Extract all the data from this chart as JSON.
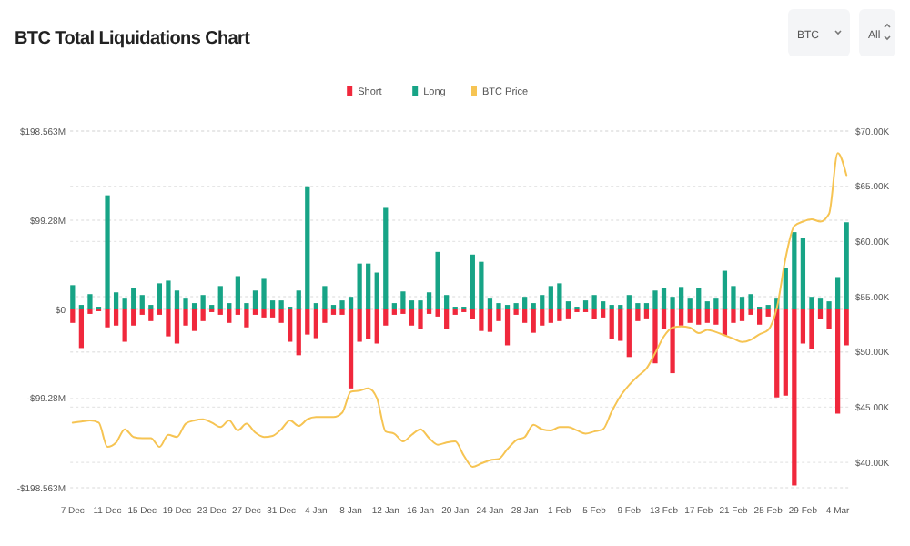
{
  "chart_data": {
    "type": "bar",
    "title": "BTC Total Liquidations Chart",
    "annotations": [
      "BTC",
      "All"
    ],
    "categories": [
      "7 Dec",
      null,
      null,
      null,
      "11 Dec",
      null,
      null,
      null,
      "15 Dec",
      null,
      null,
      null,
      "19 Dec",
      null,
      null,
      null,
      "23 Dec",
      null,
      null,
      null,
      "27 Dec",
      null,
      null,
      null,
      "31 Dec",
      null,
      null,
      null,
      "4 Jan",
      null,
      null,
      null,
      "8 Jan",
      null,
      null,
      null,
      "12 Jan",
      null,
      null,
      null,
      "16 Jan",
      null,
      null,
      null,
      "20 Jan",
      null,
      null,
      null,
      "24 Jan",
      null,
      null,
      null,
      "28 Jan",
      null,
      null,
      null,
      "1 Feb",
      null,
      null,
      null,
      "5 Feb",
      null,
      null,
      null,
      "9 Feb",
      null,
      null,
      null,
      "13 Feb",
      null,
      null,
      null,
      "17 Feb",
      null,
      null,
      null,
      "21 Feb",
      null,
      null,
      null,
      "25 Feb",
      null,
      null,
      null,
      "29 Feb",
      null,
      null,
      null,
      "4 Mar",
      null
    ],
    "series": [
      {
        "name": "Short",
        "color": "#f0283c",
        "values": [
          -15,
          -43,
          -5,
          -2,
          -20,
          -18,
          -36,
          -18,
          -6,
          -13,
          -6,
          -30,
          -38,
          -18,
          -24,
          -13,
          -3,
          -6,
          -15,
          -6,
          -20,
          -6,
          -9,
          -9,
          -15,
          -36,
          -51,
          -28,
          -32,
          -15,
          -6,
          -6,
          -88,
          -36,
          -33,
          -38,
          -18,
          -6,
          -5,
          -18,
          -22,
          -5,
          -8,
          -22,
          -6,
          -3,
          -11,
          -24,
          -25,
          -13,
          -40,
          -6,
          -15,
          -26,
          -18,
          -15,
          -13,
          -10,
          -3,
          -3,
          -11,
          -9,
          -33,
          -35,
          -53,
          -13,
          -10,
          -60,
          -22,
          -71,
          -18,
          -15,
          -17,
          -15,
          -17,
          -29,
          -15,
          -13,
          -6,
          -17,
          -8,
          -98,
          -96,
          -196,
          -38,
          -44,
          -11,
          -22,
          -116,
          -40
        ]
      },
      {
        "name": "Long",
        "color": "#17a486",
        "values": [
          27,
          5,
          17,
          3,
          127,
          19,
          12,
          24,
          16,
          5,
          29,
          32,
          21,
          12,
          7,
          16,
          5,
          26,
          7,
          37,
          7,
          21,
          34,
          10,
          10,
          3,
          21,
          137,
          7,
          26,
          5,
          10,
          14,
          51,
          51,
          41,
          113,
          7,
          20,
          10,
          10,
          19,
          64,
          16,
          3,
          3,
          61,
          53,
          12,
          7,
          5,
          7,
          14,
          7,
          16,
          26,
          29,
          9,
          3,
          10,
          16,
          9,
          5,
          5,
          16,
          7,
          7,
          21,
          24,
          14,
          25,
          12,
          24,
          9,
          12,
          43,
          26,
          14,
          17,
          3,
          5,
          12,
          46,
          86,
          80,
          14,
          12,
          9,
          36,
          97
        ]
      },
      {
        "name": "BTC Price",
        "type": "line",
        "axis": "y2",
        "color": "#f6c453",
        "values": [
          43.6,
          43.7,
          43.8,
          43.6,
          41.4,
          41.8,
          43.0,
          42.3,
          42.2,
          42.2,
          41.4,
          42.5,
          42.3,
          43.5,
          43.8,
          43.9,
          43.6,
          43.2,
          43.8,
          42.9,
          43.5,
          42.7,
          42.3,
          42.4,
          43.0,
          43.8,
          43.3,
          43.9,
          44.1,
          44.1,
          44.1,
          44.5,
          46.4,
          46.5,
          46.7,
          45.8,
          42.8,
          42.6,
          41.9,
          42.5,
          43.0,
          42.2,
          41.6,
          41.8,
          41.9,
          40.6,
          39.6,
          39.9,
          40.2,
          40.3,
          41.2,
          42.0,
          42.3,
          43.4,
          43.0,
          42.9,
          43.2,
          43.2,
          42.9,
          42.6,
          42.8,
          43.0,
          44.6,
          46.0,
          47.0,
          47.8,
          48.5,
          49.9,
          51.4,
          52.2,
          52.3,
          52.2,
          51.7,
          52.0,
          51.8,
          51.5,
          51.2,
          50.9,
          51.1,
          51.6,
          52.0,
          54.0,
          58.5,
          61.4,
          61.8,
          62.0,
          61.8,
          62.5,
          68.0,
          66.0
        ]
      }
    ],
    "ylim": [
      -198.563,
      198.563
    ],
    "yticks": [
      {
        "value": 198.563,
        "label": "$198.563M"
      },
      {
        "value": 99.28,
        "label": "$99.28M"
      },
      {
        "value": 0,
        "label": "$0"
      },
      {
        "value": -99.28,
        "label": "-$99.28M"
      },
      {
        "value": -198.563,
        "label": "-$198.563M"
      }
    ],
    "y2lim": [
      37.7,
      70
    ],
    "y2ticks": [
      {
        "value": 70,
        "label": "$70.00K"
      },
      {
        "value": 65,
        "label": "$65.00K"
      },
      {
        "value": 60,
        "label": "$60.00K"
      },
      {
        "value": 55,
        "label": "$55.00K"
      },
      {
        "value": 50,
        "label": "$50.00K"
      },
      {
        "value": 45,
        "label": "$45.00K"
      },
      {
        "value": 40,
        "label": "$40.00K"
      }
    ],
    "grid": "y",
    "legend": "top",
    "stacked": true
  }
}
